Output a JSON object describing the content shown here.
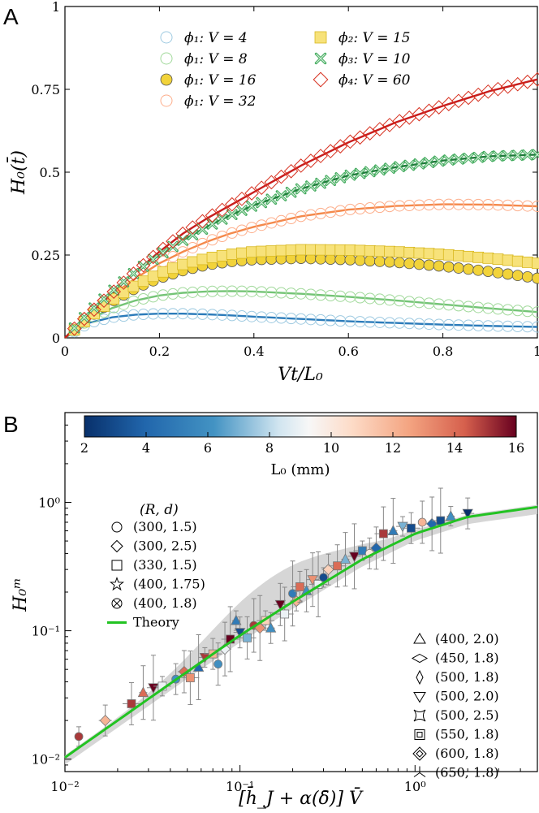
{
  "chart_data": [
    {
      "panel_label": "A",
      "type": "scatter",
      "xlabel": "Vt/L₀",
      "ylabel": "H₀(t̄)",
      "xlim": [
        0,
        1
      ],
      "ylim": [
        0,
        1
      ],
      "xticks": [
        "0",
        "0.2",
        "0.4",
        "0.6",
        "0.8",
        "1"
      ],
      "yticks": [
        "0",
        "0.25",
        "0.5",
        "0.75",
        "1"
      ],
      "legend_placement": "top",
      "series": [
        {
          "name": "ϕ₁: V = 4",
          "marker": "circle-open",
          "color": "#9ecae1",
          "line_color": "#2b7bba",
          "x": [
            0,
            0.05,
            0.1,
            0.15,
            0.2,
            0.25,
            0.3,
            0.35,
            0.4,
            0.5,
            0.6,
            0.7,
            0.8,
            0.9,
            1.0
          ],
          "y": [
            0,
            0.045,
            0.062,
            0.07,
            0.073,
            0.073,
            0.071,
            0.068,
            0.064,
            0.057,
            0.05,
            0.045,
            0.04,
            0.036,
            0.033
          ]
        },
        {
          "name": "ϕ₁: V = 8",
          "marker": "circle-open",
          "color": "#a1d99b",
          "line_color": "#74c476",
          "x": [
            0,
            0.05,
            0.1,
            0.15,
            0.2,
            0.25,
            0.3,
            0.35,
            0.4,
            0.5,
            0.6,
            0.7,
            0.8,
            0.9,
            1.0
          ],
          "y": [
            0,
            0.055,
            0.09,
            0.113,
            0.128,
            0.136,
            0.14,
            0.141,
            0.14,
            0.133,
            0.124,
            0.113,
            0.101,
            0.089,
            0.078
          ]
        },
        {
          "name": "ϕ₁: V = 16",
          "marker": "circle-filled",
          "color": "#f2d33a",
          "line_color": "#5a4a10",
          "x": [
            0,
            0.05,
            0.1,
            0.15,
            0.2,
            0.25,
            0.3,
            0.35,
            0.4,
            0.5,
            0.6,
            0.7,
            0.8,
            0.9,
            1.0
          ],
          "y": [
            0,
            0.06,
            0.11,
            0.15,
            0.18,
            0.203,
            0.22,
            0.23,
            0.236,
            0.24,
            0.236,
            0.228,
            0.216,
            0.2,
            0.18
          ]
        },
        {
          "name": "ϕ₁: V = 32",
          "marker": "circle-open",
          "color": "#fdae8b",
          "line_color": "#f4894b",
          "x": [
            0,
            0.05,
            0.1,
            0.15,
            0.2,
            0.25,
            0.3,
            0.35,
            0.4,
            0.5,
            0.6,
            0.7,
            0.8,
            0.9,
            1.0
          ],
          "y": [
            0,
            0.07,
            0.13,
            0.18,
            0.225,
            0.26,
            0.29,
            0.315,
            0.335,
            0.367,
            0.387,
            0.398,
            0.403,
            0.402,
            0.397
          ]
        },
        {
          "name": "ϕ₂: V = 15",
          "marker": "square",
          "color": "#f7e27a",
          "line_color": "#e0c020",
          "x": [
            0,
            0.05,
            0.1,
            0.15,
            0.2,
            0.25,
            0.3,
            0.35,
            0.4,
            0.5,
            0.6,
            0.7,
            0.8,
            0.9,
            1.0
          ],
          "y": [
            0,
            0.06,
            0.115,
            0.16,
            0.195,
            0.222,
            0.24,
            0.252,
            0.26,
            0.266,
            0.265,
            0.26,
            0.252,
            0.24,
            0.225
          ]
        },
        {
          "name": "ϕ₃: V = 10",
          "marker": "cross",
          "color": "#41ab5d",
          "line_color": "#1f7a3a",
          "x": [
            0,
            0.05,
            0.1,
            0.15,
            0.2,
            0.25,
            0.3,
            0.35,
            0.4,
            0.5,
            0.6,
            0.7,
            0.8,
            0.9,
            1.0
          ],
          "y": [
            0,
            0.075,
            0.14,
            0.2,
            0.25,
            0.295,
            0.335,
            0.37,
            0.4,
            0.45,
            0.49,
            0.515,
            0.535,
            0.548,
            0.553
          ]
        },
        {
          "name": "ϕ₄: V = 60",
          "marker": "diamond",
          "color": "#d7301f",
          "line_color": "#c81d1d",
          "x": [
            0,
            0.05,
            0.1,
            0.15,
            0.2,
            0.25,
            0.3,
            0.35,
            0.4,
            0.5,
            0.6,
            0.7,
            0.8,
            0.9,
            1.0
          ],
          "y": [
            0,
            0.07,
            0.135,
            0.2,
            0.26,
            0.315,
            0.36,
            0.4,
            0.44,
            0.52,
            0.59,
            0.65,
            0.7,
            0.745,
            0.78
          ]
        }
      ]
    },
    {
      "panel_label": "B",
      "type": "scatter",
      "xscale": "log",
      "yscale": "log",
      "xlabel": "[h̄_J + α(δ̄)] V̄",
      "ylabel": "H₀ᵐ",
      "xlim": [
        0.01,
        5
      ],
      "ylim": [
        0.008,
        5
      ],
      "xticks": [
        "10⁻²",
        "10⁻¹",
        "10⁰"
      ],
      "yticks": [
        "10⁻²",
        "10⁻¹",
        "10⁰"
      ],
      "colorbar": {
        "label": "L₀ (mm)",
        "range": [
          2,
          16
        ],
        "ticks": [
          "2",
          "4",
          "6",
          "8",
          "10",
          "12",
          "14",
          "16"
        ],
        "colormap": "RdBu_r"
      },
      "legend_title": "(R, d)",
      "legend_left": [
        {
          "marker": "circle",
          "label": "(300, 1.5)"
        },
        {
          "marker": "diamond",
          "label": "(300, 2.5)"
        },
        {
          "marker": "square",
          "label": "(330, 1.5)"
        },
        {
          "marker": "star",
          "label": "(400, 1.75)"
        },
        {
          "marker": "circle-cross",
          "label": "(400, 1.8)"
        },
        {
          "marker": "line",
          "label": "Theory",
          "color": "#22c322"
        }
      ],
      "legend_right": [
        {
          "marker": "triangle-up",
          "label": "(400, 2.0)"
        },
        {
          "marker": "wide-diamond",
          "label": "(450, 1.8)"
        },
        {
          "marker": "thin-diamond",
          "label": "(500, 1.8)"
        },
        {
          "marker": "triangle-down",
          "label": "(500, 2.0)"
        },
        {
          "marker": "pinched-square",
          "label": "(500, 2.5)"
        },
        {
          "marker": "double-square",
          "label": "(550, 1.8)"
        },
        {
          "marker": "double-diamond",
          "label": "(600, 1.8)"
        },
        {
          "marker": "tri",
          "label": "(650, 1.8)"
        }
      ],
      "theory": {
        "x": [
          0.01,
          0.02,
          0.05,
          0.1,
          0.2,
          0.5,
          1,
          2,
          5
        ],
        "y": [
          0.0103,
          0.02,
          0.048,
          0.092,
          0.168,
          0.36,
          0.57,
          0.77,
          0.92
        ]
      },
      "points": [
        {
          "x": 0.012,
          "y": 0.015,
          "L0": 15
        },
        {
          "x": 0.017,
          "y": 0.02,
          "L0": 12
        },
        {
          "x": 0.024,
          "y": 0.027,
          "L0": 15
        },
        {
          "x": 0.028,
          "y": 0.033,
          "L0": 14
        },
        {
          "x": 0.032,
          "y": 0.036,
          "L0": 16
        },
        {
          "x": 0.036,
          "y": 0.037,
          "L0": 9
        },
        {
          "x": 0.043,
          "y": 0.042,
          "L0": 6
        },
        {
          "x": 0.048,
          "y": 0.048,
          "L0": 14
        },
        {
          "x": 0.052,
          "y": 0.043,
          "L0": 13
        },
        {
          "x": 0.058,
          "y": 0.052,
          "L0": 4
        },
        {
          "x": 0.063,
          "y": 0.062,
          "L0": 15
        },
        {
          "x": 0.07,
          "y": 0.066,
          "L0": 12
        },
        {
          "x": 0.075,
          "y": 0.055,
          "L0": 6
        },
        {
          "x": 0.082,
          "y": 0.072,
          "L0": 9
        },
        {
          "x": 0.088,
          "y": 0.086,
          "L0": 16
        },
        {
          "x": 0.095,
          "y": 0.12,
          "L0": 5
        },
        {
          "x": 0.1,
          "y": 0.097,
          "L0": 3
        },
        {
          "x": 0.11,
          "y": 0.088,
          "L0": 7
        },
        {
          "x": 0.12,
          "y": 0.11,
          "L0": 15
        },
        {
          "x": 0.13,
          "y": 0.105,
          "L0": 13
        },
        {
          "x": 0.14,
          "y": 0.12,
          "L0": 11
        },
        {
          "x": 0.15,
          "y": 0.105,
          "L0": 6
        },
        {
          "x": 0.17,
          "y": 0.16,
          "L0": 16
        },
        {
          "x": 0.18,
          "y": 0.135,
          "L0": 9
        },
        {
          "x": 0.2,
          "y": 0.195,
          "L0": 5
        },
        {
          "x": 0.21,
          "y": 0.17,
          "L0": 12
        },
        {
          "x": 0.22,
          "y": 0.22,
          "L0": 14
        },
        {
          "x": 0.24,
          "y": 0.205,
          "L0": 6
        },
        {
          "x": 0.26,
          "y": 0.25,
          "L0": 13
        },
        {
          "x": 0.28,
          "y": 0.23,
          "L0": 9
        },
        {
          "x": 0.3,
          "y": 0.26,
          "L0": 3
        },
        {
          "x": 0.32,
          "y": 0.3,
          "L0": 11
        },
        {
          "x": 0.36,
          "y": 0.32,
          "L0": 14
        },
        {
          "x": 0.4,
          "y": 0.36,
          "L0": 7
        },
        {
          "x": 0.45,
          "y": 0.38,
          "L0": 16
        },
        {
          "x": 0.5,
          "y": 0.42,
          "L0": 5
        },
        {
          "x": 0.55,
          "y": 0.4,
          "L0": 10
        },
        {
          "x": 0.6,
          "y": 0.44,
          "L0": 4
        },
        {
          "x": 0.66,
          "y": 0.57,
          "L0": 15
        },
        {
          "x": 0.75,
          "y": 0.6,
          "L0": 5
        },
        {
          "x": 0.85,
          "y": 0.65,
          "L0": 7
        },
        {
          "x": 0.95,
          "y": 0.63,
          "L0": 3
        },
        {
          "x": 1.1,
          "y": 0.7,
          "L0": 12
        },
        {
          "x": 1.25,
          "y": 0.68,
          "L0": 4
        },
        {
          "x": 1.4,
          "y": 0.72,
          "L0": 3
        },
        {
          "x": 1.6,
          "y": 0.78,
          "L0": 6
        },
        {
          "x": 2.0,
          "y": 0.82,
          "L0": 2
        }
      ]
    }
  ]
}
